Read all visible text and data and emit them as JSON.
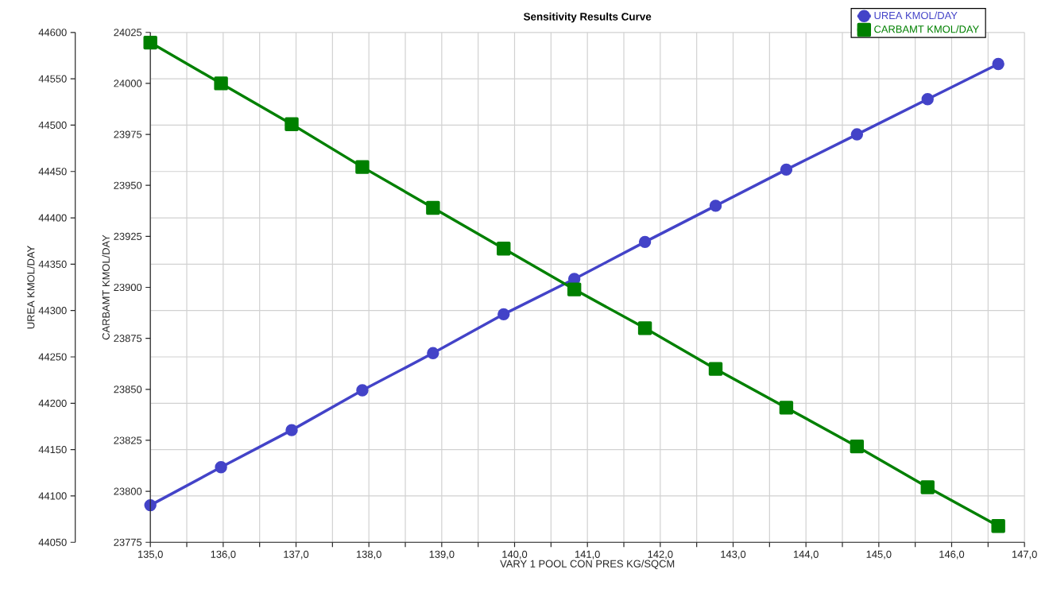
{
  "chart_data": {
    "type": "line",
    "title": "Sensitivity Results Curve",
    "xlabel": "VARY   1 POOL CON PRES KG/SQCM",
    "ylabel": "UREA KMOL/DAY",
    "y2label": "CARBAMT KMOL/DAY",
    "x": [
      135,
      135.97,
      136.94,
      137.91,
      138.88,
      139.85,
      140.82,
      141.79,
      142.76,
      143.73,
      144.7,
      145.67,
      146.64
    ],
    "series": [
      {
        "name": "UREA KMOL/DAY",
        "color": "#4343c8",
        "marker": "circle",
        "axis": "y",
        "values": [
          44090,
          44131,
          44171,
          44214,
          44254,
          44296,
          44334,
          44374,
          44413,
          44452,
          44490,
          44528,
          44566
        ]
      },
      {
        "name": "CARBAMT KMOL/DAY",
        "color": "#008000",
        "marker": "square",
        "axis": "y2",
        "values": [
          24020,
          24000,
          23980,
          23959,
          23939,
          23919,
          23899,
          23880,
          23860,
          23841,
          23822,
          23802,
          23783
        ]
      }
    ],
    "xlim": [
      135,
      147
    ],
    "xticks": [
      {
        "value": 135,
        "label": "135,0"
      },
      {
        "value": 135.5,
        "label": null
      },
      {
        "value": 136,
        "label": "136,0"
      },
      {
        "value": 136.5,
        "label": null
      },
      {
        "value": 137,
        "label": "137,0"
      },
      {
        "value": 137.5,
        "label": null
      },
      {
        "value": 138,
        "label": "138,0"
      },
      {
        "value": 138.5,
        "label": null
      },
      {
        "value": 139,
        "label": "139,0"
      },
      {
        "value": 139.5,
        "label": null
      },
      {
        "value": 140,
        "label": "140,0"
      },
      {
        "value": 140.5,
        "label": null
      },
      {
        "value": 141,
        "label": "141,0"
      },
      {
        "value": 141.5,
        "label": null
      },
      {
        "value": 142,
        "label": "142,0"
      },
      {
        "value": 142.5,
        "label": null
      },
      {
        "value": 143,
        "label": "143,0"
      },
      {
        "value": 143.5,
        "label": null
      },
      {
        "value": 144,
        "label": "144,0"
      },
      {
        "value": 144.5,
        "label": null
      },
      {
        "value": 145,
        "label": "145,0"
      },
      {
        "value": 145.5,
        "label": null
      },
      {
        "value": 146,
        "label": "146,0"
      },
      {
        "value": 146.5,
        "label": null
      },
      {
        "value": 147,
        "label": "147,0"
      }
    ],
    "ylim": [
      44050,
      44600
    ],
    "yticks": [
      44050,
      44100,
      44150,
      44200,
      44250,
      44300,
      44350,
      44400,
      44450,
      44500,
      44550,
      44600
    ],
    "y2lim": [
      23775,
      24025
    ],
    "y2ticks": [
      23775,
      23800,
      23825,
      23850,
      23875,
      23900,
      23925,
      23950,
      23975,
      24000,
      24025
    ],
    "grid": true,
    "legend": "top right",
    "line_style": "solid"
  }
}
